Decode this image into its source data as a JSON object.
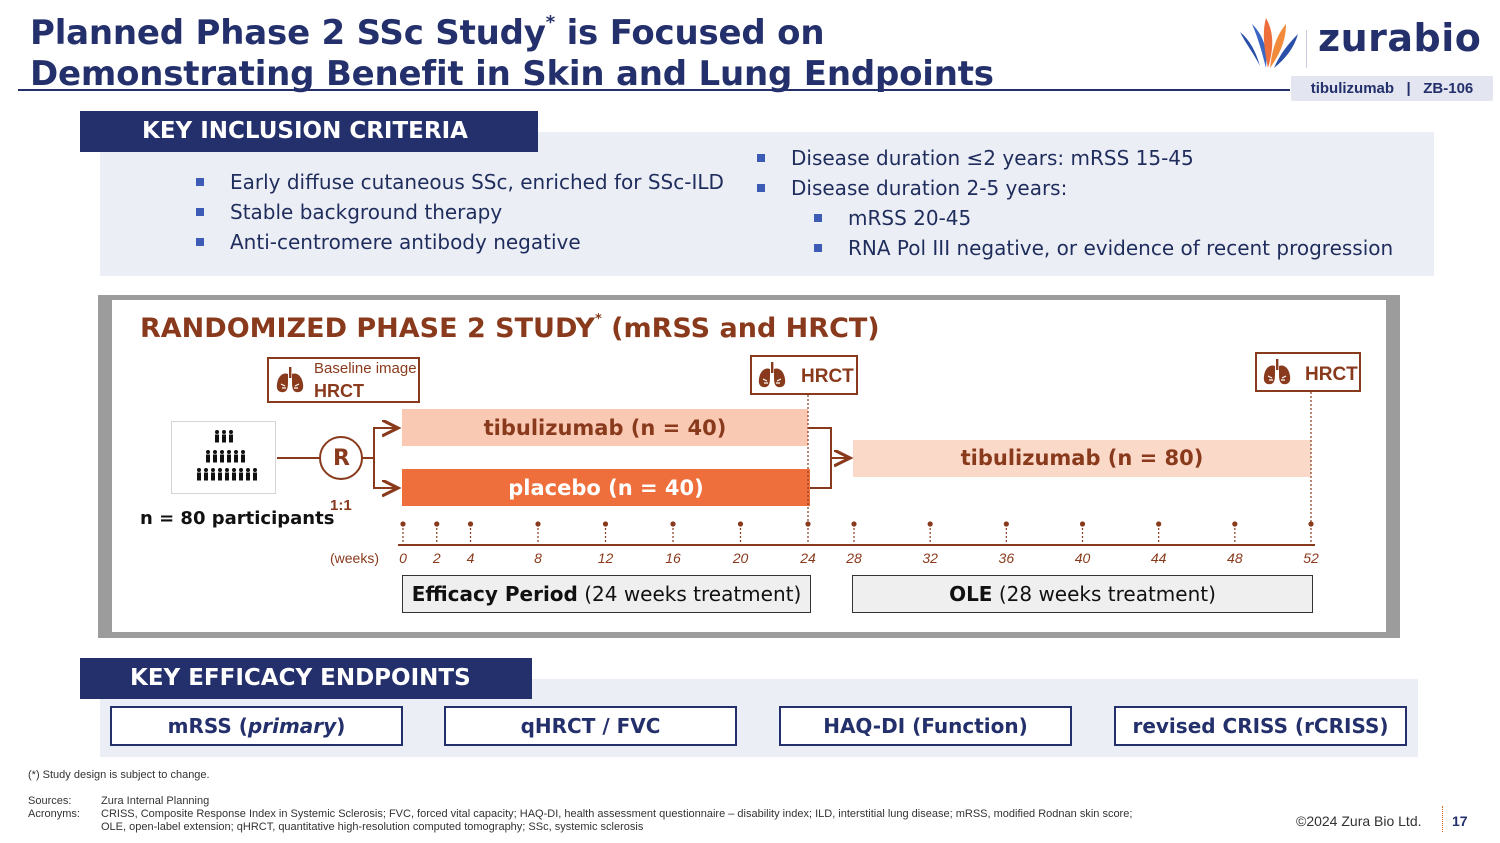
{
  "header": {
    "title_line1_pre": "Planned Phase 2 SSc Study",
    "title_line1_mark": "*",
    "title_line1_post": " is Focused on",
    "title_line2": "Demonstrating Benefit in Skin and Lung Endpoints",
    "logo_text": "zurabio",
    "tag_text": "tibulizumab   |   ZB-106"
  },
  "inclusion": {
    "header": "KEY INCLUSION CRITERIA",
    "left_items": [
      "Early diffuse cutaneous SSc, enriched for SSc-ILD",
      "Stable background therapy",
      "Anti-centromere antibody negative"
    ],
    "right_items": [
      "Disease duration ≤2 years: mRSS 15-45",
      "Disease duration 2-5 years:"
    ],
    "right_subitems": [
      "mRSS 20-45",
      "RNA Pol III negative, or evidence of recent progression"
    ]
  },
  "study": {
    "title_pre": "RANDOMIZED PHASE 2 STUDY",
    "title_mark": "*",
    "title_post": " (mRSS and HRCT)",
    "baseline_line1": "Baseline image",
    "baseline_line2": "HRCT",
    "hrct_label": "HRCT",
    "randomize_label": "R",
    "ratio_label": "1:1",
    "participants": "n = 80 participants",
    "arm_tibulizumab": "tibulizumab (n = 40)",
    "arm_placebo": "placebo (n = 40)",
    "arm_ole": "tibulizumab (n = 80)",
    "weeks_label": "(weeks)",
    "weeks": [
      "0",
      "2",
      "4",
      "8",
      "12",
      "16",
      "20",
      "24",
      "28",
      "32",
      "36",
      "40",
      "44",
      "48",
      "52"
    ],
    "efficacy_bold": "Efficacy Period",
    "efficacy_rest": " (24 weeks treatment)",
    "ole_bold": "OLE",
    "ole_rest": " (28 weeks treatment)"
  },
  "endpoints": {
    "header": "KEY EFFICACY ENDPOINTS",
    "items": [
      {
        "main": "mRSS (",
        "emph": "primary",
        "tail": ")"
      },
      {
        "main": "qHRCT / FVC",
        "emph": "",
        "tail": ""
      },
      {
        "main": "HAQ-DI (Function)",
        "emph": "",
        "tail": ""
      },
      {
        "main": "revised CRISS (rCRISS)",
        "emph": "",
        "tail": ""
      }
    ]
  },
  "footer": {
    "note": "(*) Study design is subject to change.",
    "sources_label": "Sources:",
    "sources_text": "Zura Internal Planning",
    "acronyms_label": "Acronyms:",
    "acronyms_line1": "CRISS, Composite Response Index in Systemic Sclerosis; FVC, forced vital capacity; HAQ-DI, health assessment questionnaire – disability index; ILD, interstitial lung disease; mRSS, modified Rodnan skin score;",
    "acronyms_line2": "OLE, open-label extension; qHRCT, quantitative high-resolution computed tomography; SSc, systemic sclerosis",
    "copyright": "©2024 Zura Bio Ltd.",
    "page": "17"
  },
  "colors": {
    "navy": "#24306b",
    "rust": "#8a3a1c",
    "orange": "#ee6f3c",
    "peach": "#f9c9b3",
    "light_peach": "#fbd9c8",
    "panel": "#eceef6"
  }
}
